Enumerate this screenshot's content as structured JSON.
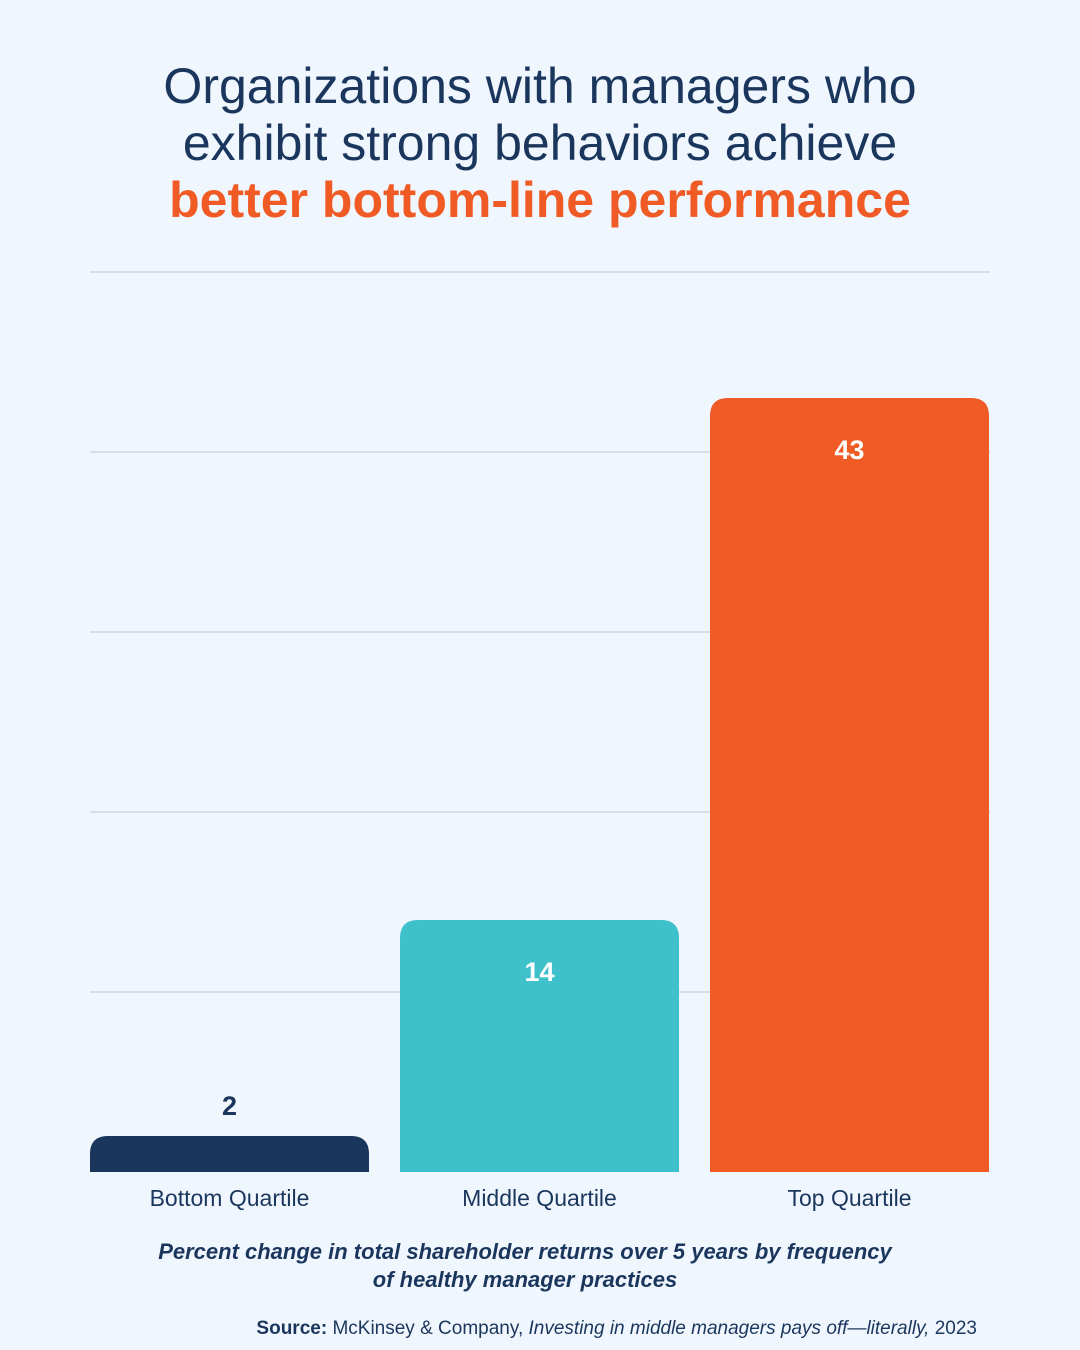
{
  "headline": {
    "line1": "Organizations with managers who",
    "line2": "exhibit strong behaviors achieve",
    "line3": "better bottom-line performance"
  },
  "colors": {
    "background": "#eff6fd",
    "text": "#1b365d",
    "accent": "#f05a24",
    "bar_bottom": "#1b365d",
    "bar_middle": "#3ec1cb",
    "bar_top": "#f05a24",
    "gridline": "#c9ced8"
  },
  "chart_data": {
    "type": "bar",
    "title": "Organizations with managers who exhibit strong behaviors achieve better bottom-line performance",
    "categories": [
      "Bottom Quartile",
      "Middle Quartile",
      "Top Quartile"
    ],
    "values": [
      2,
      14,
      43
    ],
    "bar_colors": [
      "#1b365d",
      "#3ec1cb",
      "#f05a24"
    ],
    "data_label_position": [
      "above",
      "inside",
      "inside"
    ],
    "ylim": [
      0,
      50
    ],
    "yticks": [
      0,
      10,
      20,
      30,
      40,
      50
    ],
    "grid": true,
    "xlabel": "",
    "ylabel": ""
  },
  "caption": {
    "line1": "Percent change in total shareholder returns over 5 years by frequency",
    "line2": "of healthy manager practices"
  },
  "source": {
    "label": "Source:",
    "publisher": " McKinsey & Company, ",
    "title": "Investing in middle managers pays off—literally,",
    "year": " 2023"
  }
}
